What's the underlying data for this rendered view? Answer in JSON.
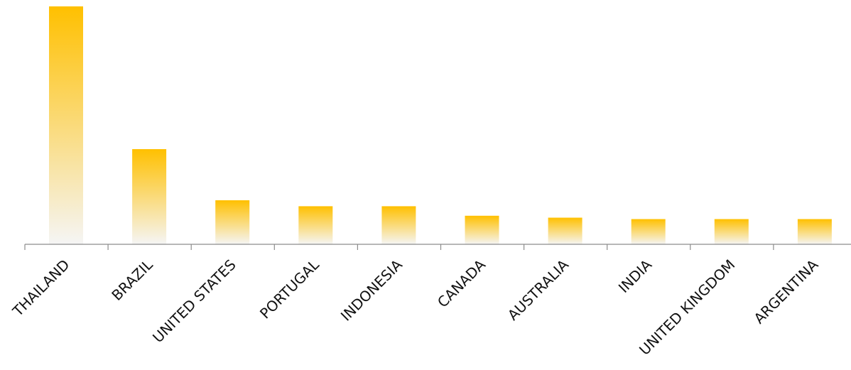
{
  "chart_data": {
    "type": "bar",
    "title": "",
    "xlabel": "",
    "ylabel": "",
    "categories": [
      "THAILAND",
      "BRAZIL",
      "UNITED STATES",
      "PORTUGAL",
      "INDONESIA",
      "CANADA",
      "AUSTRALIA",
      "INDIA",
      "UNITED KINGDOM",
      "ARGENTINA"
    ],
    "values": [
      100,
      40,
      18.5,
      16,
      16,
      12,
      11.2,
      10.6,
      10.6,
      10.6
    ],
    "ylim": [
      0,
      100
    ],
    "grid": false,
    "legend": "none",
    "colors": {
      "bar_top": "#FFC000",
      "bar_bottom": "#F5F5F5",
      "axis": "#8C8C8C",
      "label": "#111111"
    }
  }
}
